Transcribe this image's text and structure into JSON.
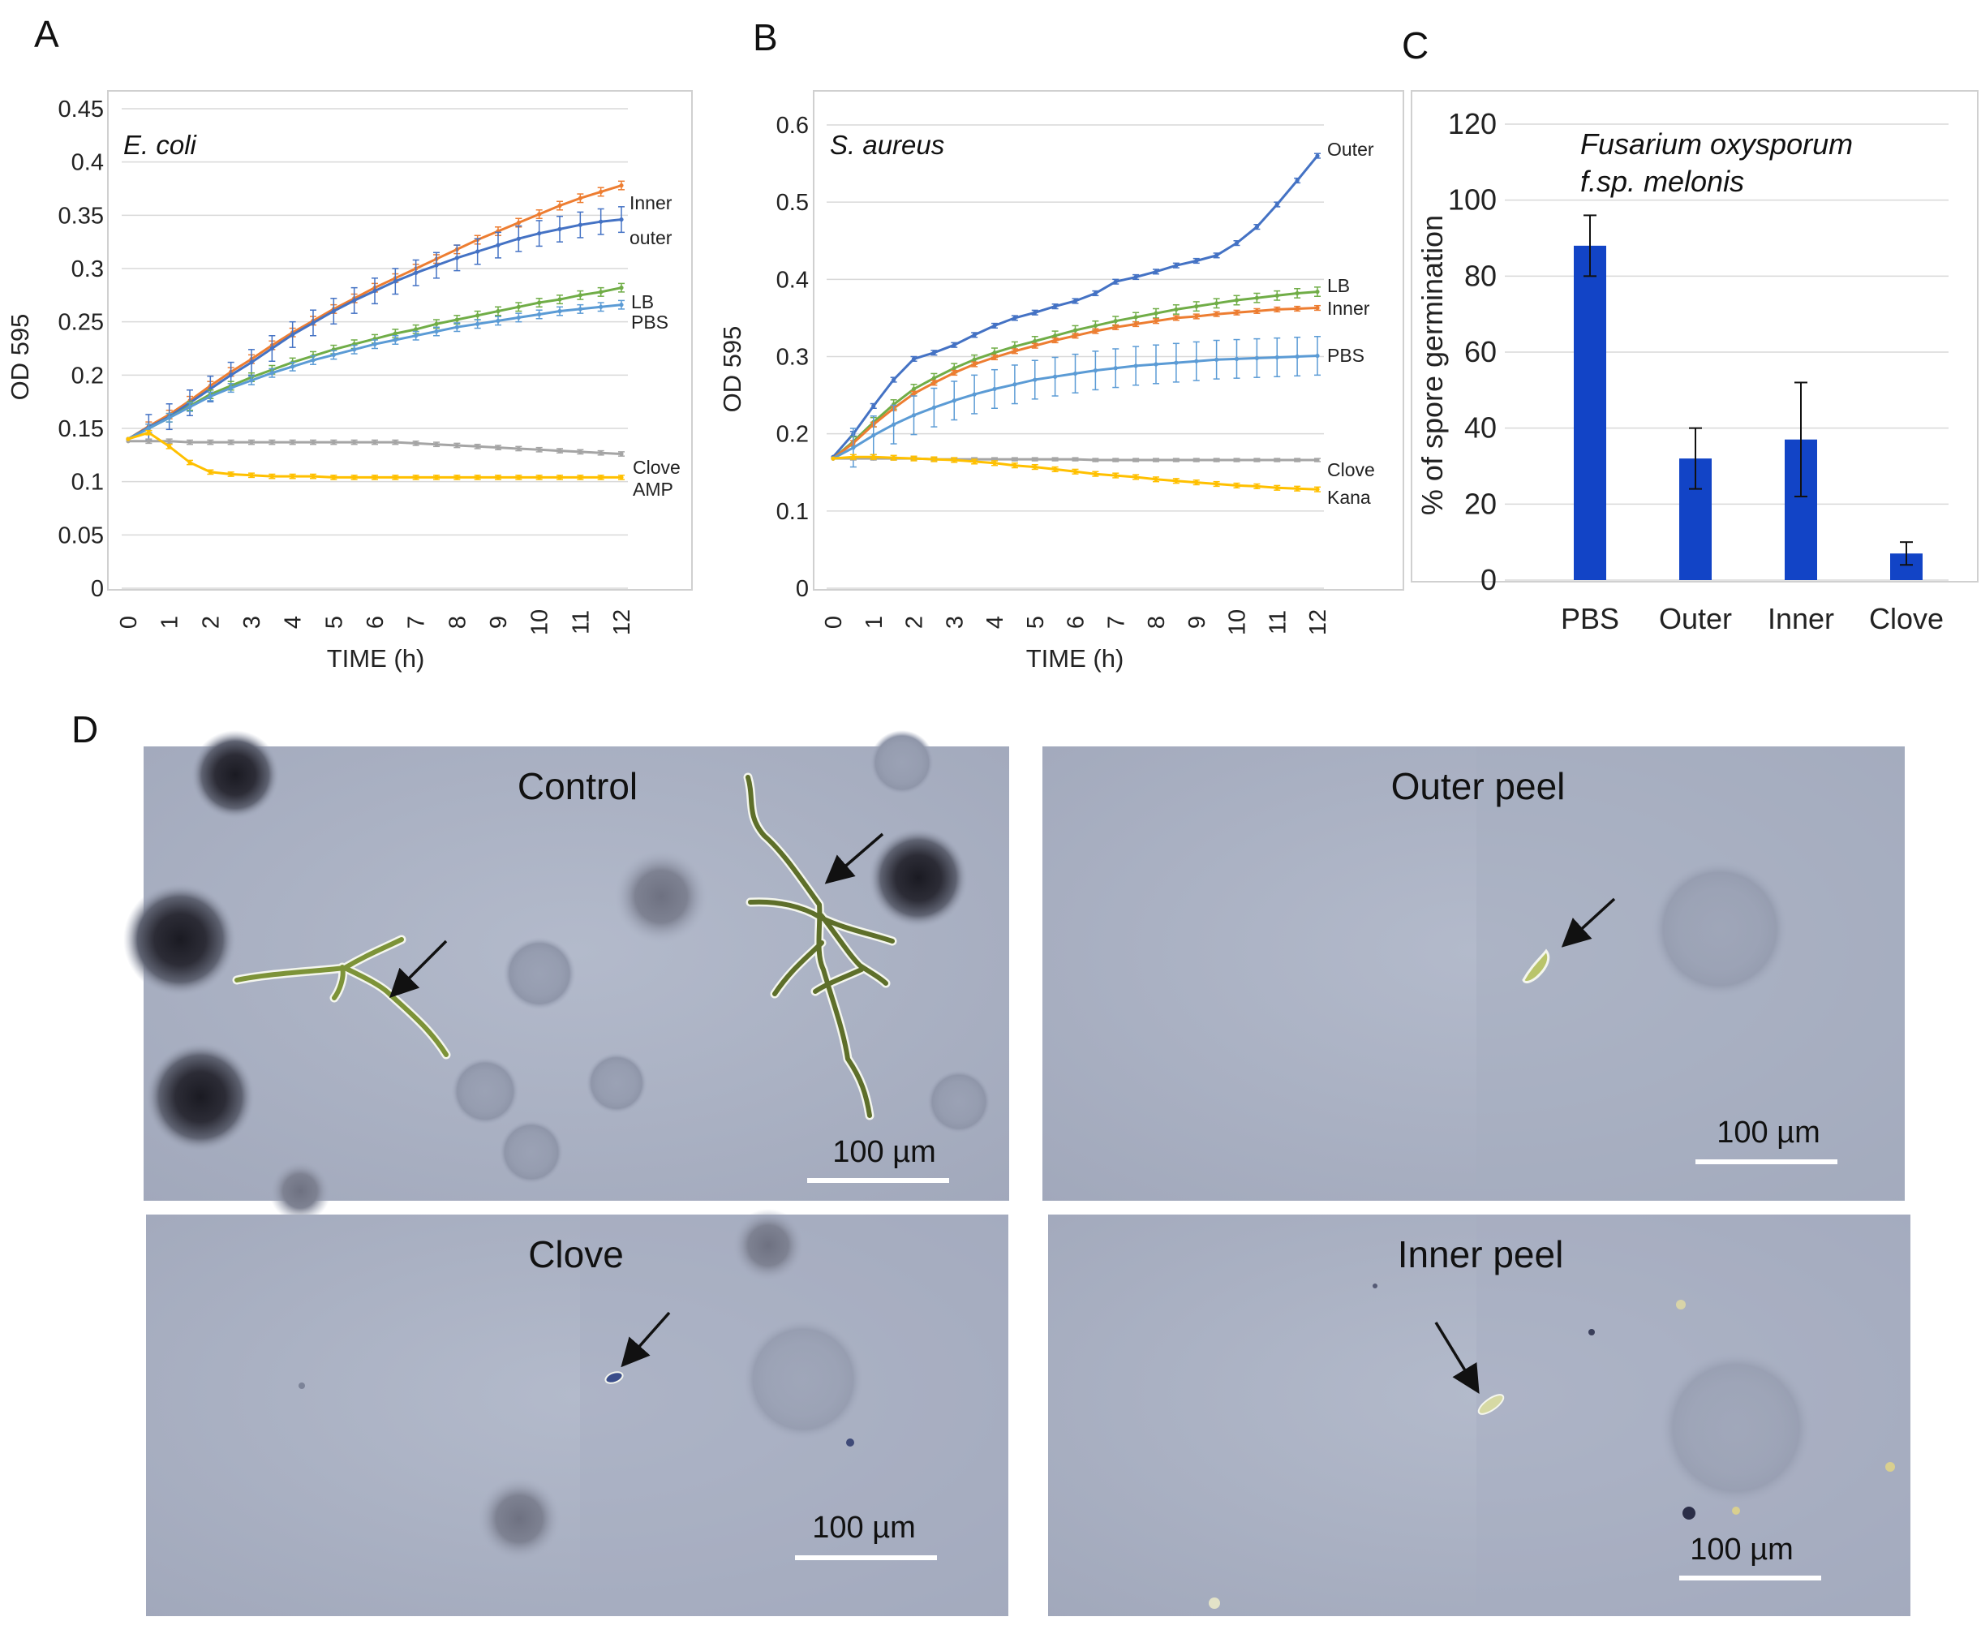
{
  "panels": {
    "A": "A",
    "B": "B",
    "C": "C",
    "D": "D"
  },
  "chart_data": [
    {
      "type": "line",
      "panel": "A",
      "organism": "E. coli",
      "xlabel": "TIME (h)",
      "ylabel": "OD 595",
      "ylim": [
        0,
        0.45
      ],
      "yticks": [
        "0",
        "0.05",
        "0.1",
        "0.15",
        "0.2",
        "0.25",
        "0.3",
        "0.35",
        "0.4",
        "0.45"
      ],
      "xticks": [
        "0",
        "1",
        "2",
        "3",
        "4",
        "5",
        "6",
        "7",
        "8",
        "9",
        "10",
        "11",
        "12"
      ],
      "x": [
        0,
        0.5,
        1,
        1.5,
        2,
        2.5,
        3,
        3.5,
        4,
        4.5,
        5,
        5.5,
        6,
        6.5,
        7,
        7.5,
        8,
        8.5,
        9,
        9.5,
        10,
        10.5,
        11,
        11.5,
        12
      ],
      "grid": "horizontal",
      "series": [
        {
          "name": "Inner",
          "color": "#ed7d31",
          "err": 0.004,
          "values": [
            0.14,
            0.152,
            0.163,
            0.176,
            0.19,
            0.203,
            0.215,
            0.228,
            0.24,
            0.251,
            0.262,
            0.272,
            0.282,
            0.291,
            0.3,
            0.309,
            0.318,
            0.327,
            0.335,
            0.343,
            0.351,
            0.359,
            0.366,
            0.372,
            0.378
          ]
        },
        {
          "name": "outer",
          "color": "#4472c4",
          "err": 0.012,
          "values": [
            0.14,
            0.151,
            0.161,
            0.174,
            0.187,
            0.2,
            0.212,
            0.225,
            0.238,
            0.249,
            0.26,
            0.27,
            0.279,
            0.288,
            0.296,
            0.303,
            0.31,
            0.316,
            0.322,
            0.328,
            0.333,
            0.337,
            0.341,
            0.344,
            0.346
          ]
        },
        {
          "name": "LB",
          "color": "#70ad47",
          "err": 0.004,
          "values": [
            0.14,
            0.15,
            0.16,
            0.171,
            0.182,
            0.19,
            0.198,
            0.205,
            0.212,
            0.218,
            0.224,
            0.229,
            0.234,
            0.239,
            0.243,
            0.248,
            0.252,
            0.256,
            0.26,
            0.264,
            0.268,
            0.271,
            0.275,
            0.278,
            0.282
          ]
        },
        {
          "name": "PBS",
          "color": "#5b9bd5",
          "err": 0.004,
          "values": [
            0.14,
            0.15,
            0.16,
            0.17,
            0.18,
            0.188,
            0.195,
            0.202,
            0.208,
            0.214,
            0.219,
            0.224,
            0.229,
            0.233,
            0.237,
            0.241,
            0.245,
            0.248,
            0.251,
            0.254,
            0.257,
            0.26,
            0.262,
            0.264,
            0.266
          ]
        },
        {
          "name": "Clove",
          "color": "#a5a5a5",
          "err": 0.002,
          "values": [
            0.138,
            0.138,
            0.138,
            0.137,
            0.137,
            0.137,
            0.137,
            0.137,
            0.137,
            0.137,
            0.137,
            0.137,
            0.137,
            0.137,
            0.136,
            0.135,
            0.134,
            0.133,
            0.132,
            0.131,
            0.13,
            0.129,
            0.128,
            0.127,
            0.126
          ]
        },
        {
          "name": "AMP",
          "color": "#ffc000",
          "err": 0.002,
          "values": [
            0.14,
            0.146,
            0.133,
            0.118,
            0.109,
            0.107,
            0.106,
            0.105,
            0.105,
            0.105,
            0.104,
            0.104,
            0.104,
            0.104,
            0.104,
            0.104,
            0.104,
            0.104,
            0.104,
            0.104,
            0.104,
            0.104,
            0.104,
            0.104,
            0.104
          ]
        }
      ]
    },
    {
      "type": "line",
      "panel": "B",
      "organism": "S. aureus",
      "xlabel": "TIME (h)",
      "ylabel": "OD 595",
      "ylim": [
        0,
        0.6
      ],
      "yticks": [
        "0",
        "0.1",
        "0.2",
        "0.3",
        "0.4",
        "0.5",
        "0.6"
      ],
      "xticks": [
        "0",
        "1",
        "2",
        "3",
        "4",
        "5",
        "6",
        "7",
        "8",
        "9",
        "10",
        "11",
        "12"
      ],
      "x": [
        0,
        0.5,
        1,
        1.5,
        2,
        2.5,
        3,
        3.5,
        4,
        4.5,
        5,
        5.5,
        6,
        6.5,
        7,
        7.5,
        8,
        8.5,
        9,
        9.5,
        10,
        10.5,
        11,
        11.5,
        12
      ],
      "grid": "horizontal",
      "series": [
        {
          "name": "Outer",
          "color": "#4472c4",
          "err": 0.003,
          "values": [
            0.17,
            0.2,
            0.236,
            0.27,
            0.297,
            0.305,
            0.315,
            0.328,
            0.34,
            0.35,
            0.357,
            0.365,
            0.372,
            0.382,
            0.397,
            0.403,
            0.41,
            0.418,
            0.424,
            0.431,
            0.447,
            0.468,
            0.497,
            0.528,
            0.56
          ]
        },
        {
          "name": "LB",
          "color": "#70ad47",
          "err": 0.006,
          "values": [
            0.168,
            0.19,
            0.215,
            0.238,
            0.258,
            0.272,
            0.285,
            0.296,
            0.305,
            0.313,
            0.32,
            0.327,
            0.334,
            0.34,
            0.346,
            0.351,
            0.356,
            0.361,
            0.365,
            0.369,
            0.373,
            0.376,
            0.379,
            0.382,
            0.384
          ]
        },
        {
          "name": "Inner",
          "color": "#ed7d31",
          "err": 0.003,
          "values": [
            0.168,
            0.188,
            0.212,
            0.233,
            0.252,
            0.266,
            0.279,
            0.29,
            0.299,
            0.307,
            0.314,
            0.321,
            0.327,
            0.333,
            0.338,
            0.342,
            0.346,
            0.35,
            0.352,
            0.355,
            0.357,
            0.359,
            0.361,
            0.362,
            0.363
          ]
        },
        {
          "name": "PBS",
          "color": "#5b9bd5",
          "err": 0.025,
          "values": [
            0.168,
            0.182,
            0.198,
            0.212,
            0.224,
            0.234,
            0.243,
            0.251,
            0.258,
            0.264,
            0.27,
            0.274,
            0.278,
            0.282,
            0.285,
            0.288,
            0.29,
            0.292,
            0.294,
            0.296,
            0.297,
            0.298,
            0.299,
            0.3,
            0.301
          ]
        },
        {
          "name": "Clove",
          "color": "#a5a5a5",
          "err": 0.002,
          "values": [
            0.168,
            0.168,
            0.168,
            0.168,
            0.168,
            0.167,
            0.167,
            0.167,
            0.167,
            0.167,
            0.167,
            0.167,
            0.167,
            0.166,
            0.166,
            0.166,
            0.166,
            0.166,
            0.166,
            0.166,
            0.166,
            0.166,
            0.166,
            0.166,
            0.166
          ]
        },
        {
          "name": "Kana",
          "color": "#ffc000",
          "err": 0.003,
          "values": [
            0.168,
            0.17,
            0.17,
            0.169,
            0.168,
            0.167,
            0.166,
            0.164,
            0.162,
            0.159,
            0.157,
            0.154,
            0.151,
            0.148,
            0.146,
            0.144,
            0.141,
            0.139,
            0.137,
            0.135,
            0.133,
            0.132,
            0.13,
            0.129,
            0.128
          ]
        }
      ]
    },
    {
      "type": "bar",
      "panel": "C",
      "title_lines": [
        "Fusarium oxysporum",
        "f.sp. melonis"
      ],
      "ylabel": "% of spore germination",
      "ylim": [
        0,
        120
      ],
      "yticks": [
        "0",
        "20",
        "40",
        "60",
        "80",
        "100",
        "120"
      ],
      "categories": [
        "PBS",
        "Outer",
        "Inner",
        "Clove"
      ],
      "values": [
        88,
        32,
        37,
        7
      ],
      "errors": [
        8,
        8,
        15,
        3
      ],
      "color": "#1244c6",
      "grid": "horizontal"
    }
  ],
  "micrographs": [
    {
      "label": "Control",
      "scale": "100 µm"
    },
    {
      "label": "Outer peel",
      "scale": "100 µm"
    },
    {
      "label": "Clove",
      "scale": "100 µm"
    },
    {
      "label": "Inner peel",
      "scale": "100 µm"
    }
  ],
  "colors": {
    "micrograph_background": "#a9b0c3",
    "hypha": "#7d9338",
    "arrow": "#111111"
  }
}
